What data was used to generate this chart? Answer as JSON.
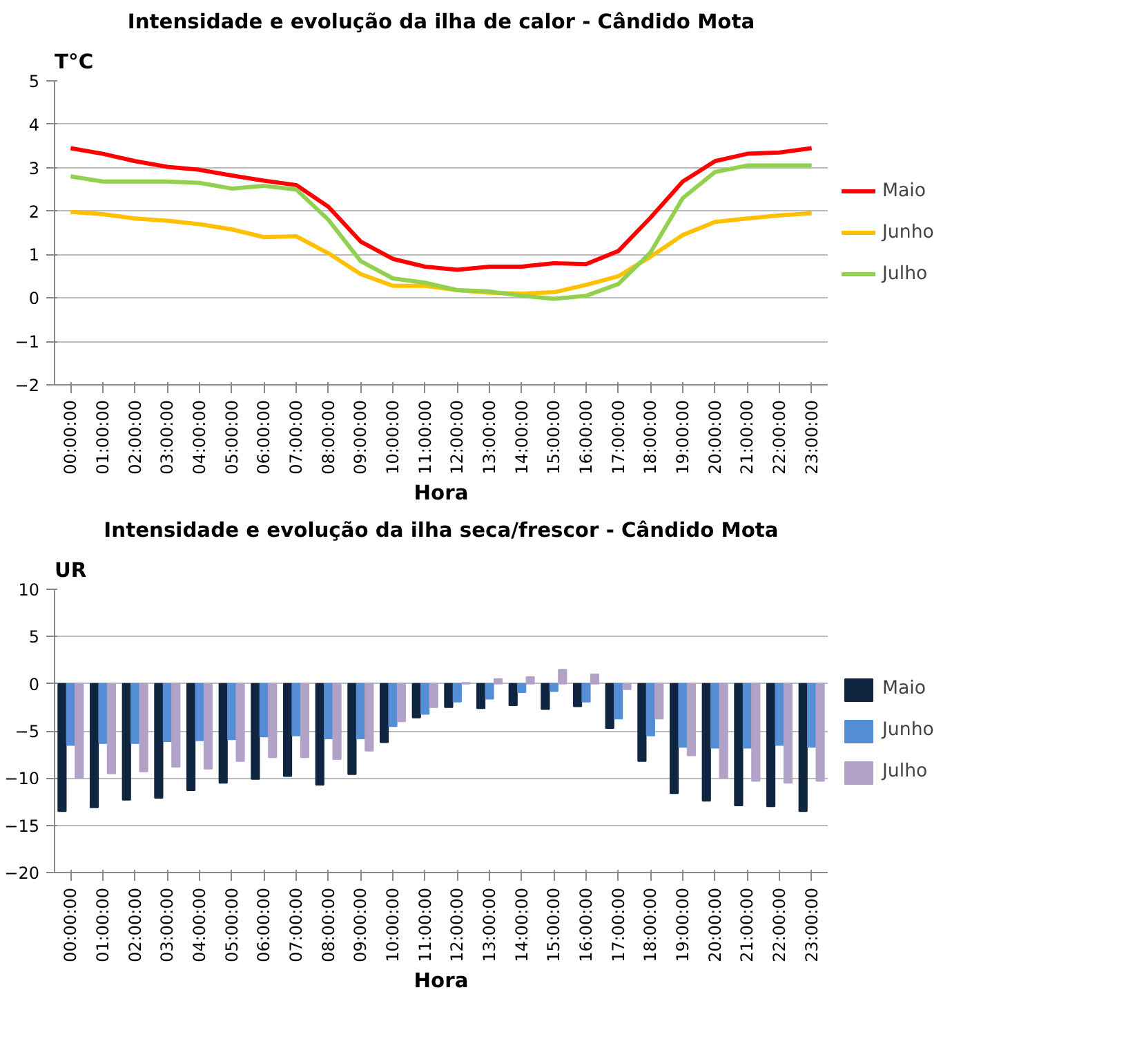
{
  "chart_data": [
    {
      "type": "line",
      "title": "Intensidade e evolução da ilha de calor - Cândido Mota",
      "ylabel": "T°C",
      "xlabel": "Hora",
      "categories": [
        "00:00:00",
        "01:00:00",
        "02:00:00",
        "03:00:00",
        "04:00:00",
        "05:00:00",
        "06:00:00",
        "07:00:00",
        "08:00:00",
        "09:00:00",
        "10:00:00",
        "11:00:00",
        "12:00:00",
        "13:00:00",
        "14:00:00",
        "15:00:00",
        "16:00:00",
        "17:00:00",
        "18:00:00",
        "19:00:00",
        "20:00:00",
        "21:00:00",
        "22:00:00",
        "23:00:00"
      ],
      "series": [
        {
          "name": "Maio",
          "color": "#ff0000",
          "values": [
            3.45,
            3.32,
            3.15,
            3.02,
            2.95,
            2.82,
            2.7,
            2.6,
            2.1,
            1.3,
            0.9,
            0.72,
            0.65,
            0.72,
            0.72,
            0.8,
            0.78,
            1.08,
            1.85,
            2.68,
            3.15,
            3.32,
            3.35,
            3.45
          ]
        },
        {
          "name": "Junho",
          "color": "#ffc000",
          "values": [
            1.98,
            1.93,
            1.83,
            1.78,
            1.7,
            1.58,
            1.4,
            1.42,
            1.03,
            0.55,
            0.28,
            0.28,
            0.18,
            0.12,
            0.1,
            0.13,
            0.3,
            0.5,
            0.95,
            1.45,
            1.75,
            1.83,
            1.9,
            1.95
          ]
        },
        {
          "name": "Julho",
          "color": "#92d050",
          "values": [
            2.8,
            2.68,
            2.68,
            2.68,
            2.65,
            2.52,
            2.58,
            2.5,
            1.8,
            0.85,
            0.45,
            0.35,
            0.18,
            0.15,
            0.05,
            -0.02,
            0.05,
            0.32,
            1.05,
            2.3,
            2.9,
            3.05,
            3.05,
            3.05
          ]
        }
      ],
      "ylim": [
        -2,
        5
      ],
      "yticks": [
        -2,
        -1,
        0,
        1,
        2,
        3,
        4,
        5
      ],
      "grid": "y",
      "legend": "right"
    },
    {
      "type": "bar",
      "title": "Intensidade e evolução da ilha seca/frescor - Cândido Mota",
      "ylabel": "UR",
      "xlabel": "Hora",
      "categories": [
        "00:00:00",
        "01:00:00",
        "02:00:00",
        "03:00:00",
        "04:00:00",
        "05:00:00",
        "06:00:00",
        "07:00:00",
        "08:00:00",
        "09:00:00",
        "10:00:00",
        "11:00:00",
        "12:00:00",
        "13:00:00",
        "14:00:00",
        "15:00:00",
        "16:00:00",
        "17:00:00",
        "18:00:00",
        "19:00:00",
        "20:00:00",
        "21:00:00",
        "22:00:00",
        "23:00:00"
      ],
      "series": [
        {
          "name": "Maio",
          "color": "#10253f",
          "values": [
            -13.5,
            -13.1,
            -12.3,
            -12.1,
            -11.3,
            -10.5,
            -10.1,
            -9.8,
            -10.7,
            -9.6,
            -6.2,
            -3.6,
            -2.5,
            -2.6,
            -2.3,
            -2.7,
            -2.4,
            -4.7,
            -8.2,
            -11.6,
            -12.4,
            -12.9,
            -13.0,
            -13.5
          ]
        },
        {
          "name": "Junho",
          "color": "#558ed5",
          "values": [
            -6.5,
            -6.3,
            -6.3,
            -6.1,
            -6.0,
            -5.9,
            -5.6,
            -5.5,
            -5.8,
            -5.8,
            -4.5,
            -3.2,
            -1.9,
            -1.6,
            -0.9,
            -0.8,
            -1.9,
            -3.7,
            -5.5,
            -6.7,
            -6.8,
            -6.8,
            -6.5,
            -6.7
          ]
        },
        {
          "name": "Julho",
          "color": "#b3a2c7",
          "values": [
            -10.0,
            -9.5,
            -9.3,
            -8.8,
            -9.0,
            -8.2,
            -7.8,
            -7.8,
            -8.0,
            -7.1,
            -4.0,
            -2.5,
            0.1,
            0.5,
            0.7,
            1.5,
            1.0,
            -0.6,
            -3.7,
            -7.6,
            -10.0,
            -10.3,
            -10.5,
            -10.3
          ]
        }
      ],
      "ylim": [
        -20,
        10
      ],
      "yticks": [
        -20,
        -15,
        -10,
        -5,
        0,
        5,
        10
      ],
      "grid": "y",
      "legend": "right"
    }
  ]
}
